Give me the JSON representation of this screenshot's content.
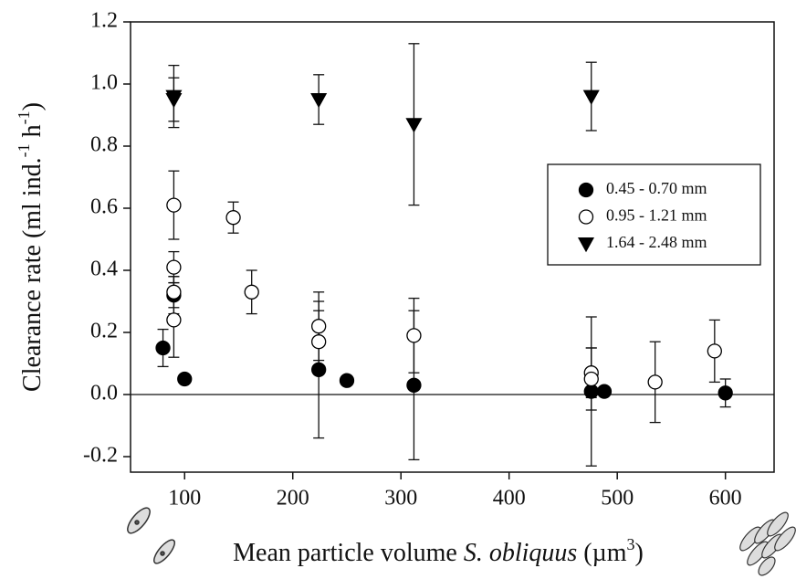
{
  "chart_data": {
    "type": "scatter",
    "ylabel_parts": [
      {
        "text": "Clearance rate (ml ind.",
        "style": "normal"
      },
      {
        "text": "-1",
        "style": "sup"
      },
      {
        "text": " h",
        "style": "normal"
      },
      {
        "text": "-1",
        "style": "sup"
      },
      {
        "text": ")",
        "style": "normal"
      }
    ],
    "xlabel_parts": [
      {
        "text": "Mean particle volume ",
        "style": "normal"
      },
      {
        "text": "S. obliquus",
        "style": "italic"
      },
      {
        "text": " (µm",
        "style": "normal"
      },
      {
        "text": "3",
        "style": "sup"
      },
      {
        "text": ")",
        "style": "normal"
      }
    ],
    "xlim": [
      50,
      645
    ],
    "ylim": [
      -0.25,
      1.2
    ],
    "xticks": [
      100,
      200,
      300,
      400,
      500,
      600
    ],
    "yticks": [
      -0.2,
      {
        "value": 0,
        "label": "0.0"
      },
      0.2,
      0.4,
      0.6,
      0.8,
      {
        "value": 1,
        "label": "1.0"
      },
      1.2
    ],
    "zero_line": true,
    "legend": "center right",
    "series": [
      {
        "name": "0.45 - 0.70 mm",
        "marker": "circle",
        "color": "#000000",
        "fill": "#000000",
        "x": [
          80,
          90,
          100,
          224,
          250,
          312,
          476,
          488,
          600
        ],
        "values": [
          0.15,
          0.32,
          0.05,
          0.08,
          0.045,
          0.03,
          0.01,
          0.01,
          0.005
        ],
        "errors": [
          0.06,
          0.06,
          null,
          0.22,
          null,
          0.24,
          0.24,
          null,
          0.045
        ]
      },
      {
        "name": "0.95 - 1.21 mm",
        "marker": "circle",
        "color": "#000000",
        "fill": "#ffffff",
        "x": [
          90,
          90,
          90,
          90,
          145,
          162,
          224,
          224,
          312,
          476,
          476,
          535,
          590
        ],
        "values": [
          0.61,
          0.41,
          0.33,
          0.24,
          0.57,
          0.33,
          0.22,
          0.17,
          0.19,
          0.07,
          0.05,
          0.04,
          0.14
        ],
        "errors": [
          0.11,
          0.05,
          0.05,
          0.12,
          0.05,
          0.07,
          0.11,
          0.1,
          0.12,
          0.08,
          0.1,
          0.13,
          0.1
        ]
      },
      {
        "name": "1.64 - 2.48 mm",
        "marker": "triangle-down",
        "color": "#000000",
        "fill": "#000000",
        "x": [
          90,
          90,
          224,
          312,
          476
        ],
        "values": [
          0.96,
          0.95,
          0.95,
          0.87,
          0.96
        ],
        "errors": [
          0.1,
          0.07,
          0.08,
          0.26,
          0.11
        ]
      }
    ]
  }
}
